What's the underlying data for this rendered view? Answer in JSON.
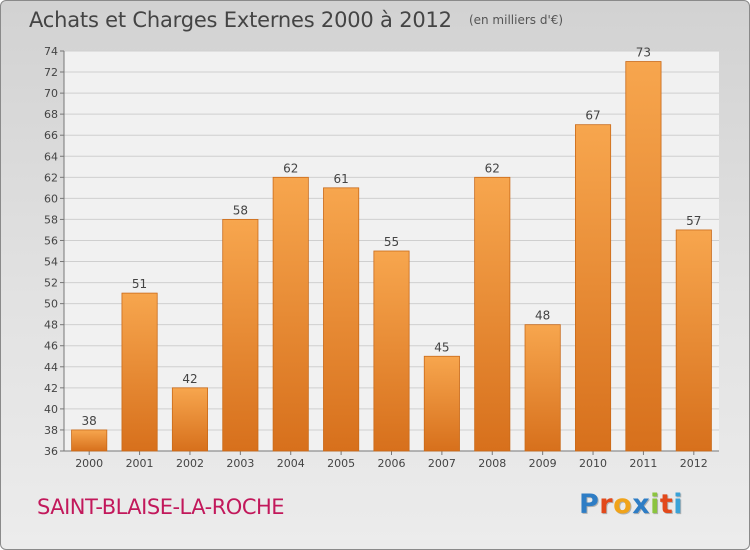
{
  "title": "Achats et Charges Externes 2000 à 2012",
  "subtitle": "(en milliers d'€)",
  "place_name": "SAINT-BLAISE-LA-ROCHE",
  "logo": {
    "text": "Proxiti",
    "letter_colors": [
      "#2e7dc5",
      "#e2491b",
      "#f0a31a",
      "#2e7dc5",
      "#8bc43f",
      "#e2491b",
      "#3aa2d8"
    ]
  },
  "colors": {
    "bar_light": "#f7a64e",
    "bar_dark": "#d7701c",
    "place_name": "#c2185b"
  },
  "chart_data": {
    "type": "bar",
    "title": "Achats et Charges Externes 2000 à 2012",
    "subtitle": "(en milliers d'€)",
    "categories": [
      "2000",
      "2001",
      "2002",
      "2003",
      "2004",
      "2005",
      "2006",
      "2007",
      "2008",
      "2009",
      "2010",
      "2011",
      "2012"
    ],
    "values": [
      38,
      51,
      42,
      58,
      62,
      61,
      55,
      45,
      62,
      48,
      67,
      73,
      57
    ],
    "ylim": [
      36,
      74
    ],
    "yticks": [
      36,
      38,
      40,
      42,
      44,
      46,
      48,
      50,
      52,
      54,
      56,
      58,
      60,
      62,
      64,
      66,
      68,
      70,
      72,
      74
    ],
    "grid": true,
    "data_labels": true
  }
}
